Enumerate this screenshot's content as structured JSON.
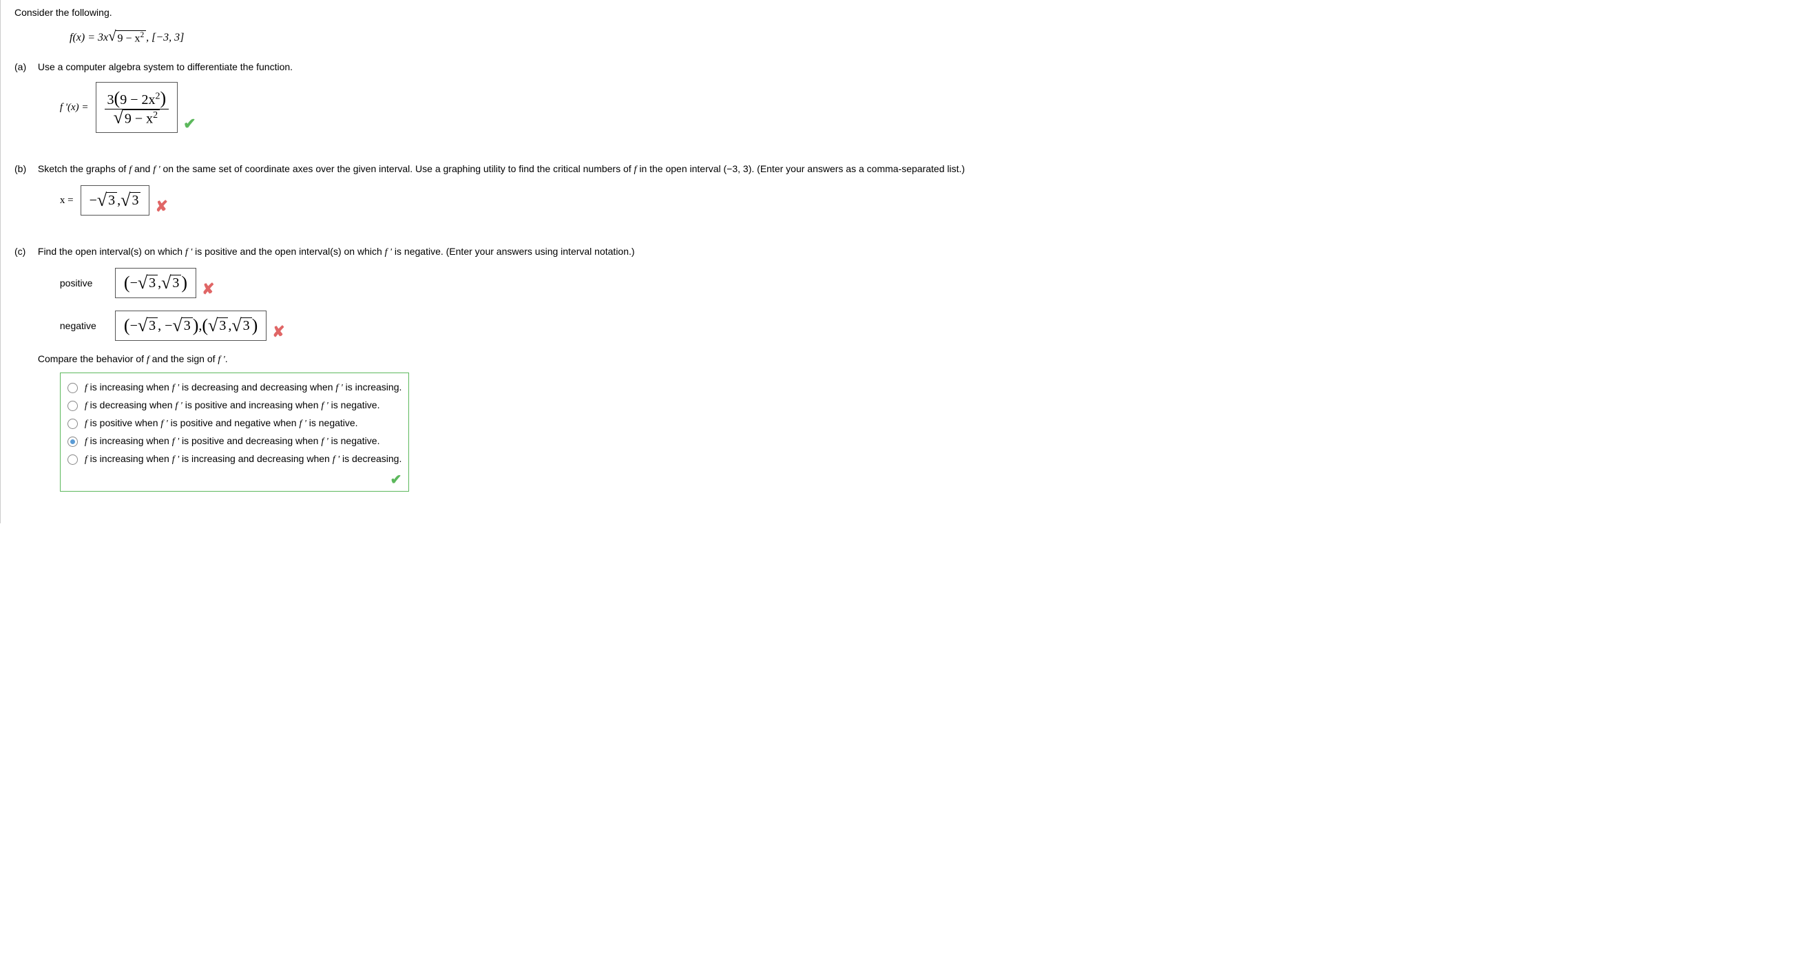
{
  "intro": "Consider the following.",
  "fx_prefix": "f(x) = 3x",
  "fx_radicand": "9 − x",
  "fx_interval": ",  [−3, 3]",
  "parts": {
    "a": {
      "label": "(a)",
      "question": "Use a computer algebra system to differentiate the function.",
      "lhs": "f '(x) = ",
      "num_left": "3",
      "num_paren": "9 − 2x",
      "den_radicand": "9 − x",
      "feedback": "check"
    },
    "b": {
      "label": "(b)",
      "question_pre": "Sketch the graphs of ",
      "question_mid1": " and ",
      "question_mid2": " on the same set of coordinate axes over the given interval. Use a graphing utility to find the critical numbers of ",
      "question_post": " in the open interval (−3, 3). (Enter your answers as a comma-separated list.)",
      "lhs": "x = ",
      "answer_neg": "3",
      "answer_pos": "3",
      "feedback": "cross"
    },
    "c": {
      "label": "(c)",
      "question_pre": "Find the open interval(s) on which ",
      "question_mid": " is positive and the open interval(s) on which ",
      "question_post": " is negative. (Enter your answers using interval notation.)",
      "positive_label": "positive",
      "negative_label": "negative",
      "pos_feedback": "cross",
      "neg_feedback": "cross",
      "compare_pre": "Compare the behavior of ",
      "compare_mid": " and the sign of ",
      "compare_post": ".",
      "options": [
        {
          "text_parts": [
            "f",
            " is increasing when ",
            "f '",
            " is decreasing and decreasing when ",
            "f '",
            " is increasing."
          ],
          "selected": false
        },
        {
          "text_parts": [
            "f",
            " is decreasing when ",
            "f '",
            " is positive and increasing when ",
            "f '",
            " is negative."
          ],
          "selected": false
        },
        {
          "text_parts": [
            "f",
            " is positive when ",
            "f '",
            " is positive and negative when ",
            "f '",
            " is negative."
          ],
          "selected": false
        },
        {
          "text_parts": [
            "f",
            " is increasing when ",
            "f '",
            " is positive and decreasing when ",
            "f '",
            " is negative."
          ],
          "selected": true
        },
        {
          "text_parts": [
            "f",
            " is increasing when ",
            "f '",
            " is increasing and decreasing when ",
            "f '",
            " is decreasing."
          ],
          "selected": false
        }
      ],
      "mc_feedback": "check"
    }
  }
}
